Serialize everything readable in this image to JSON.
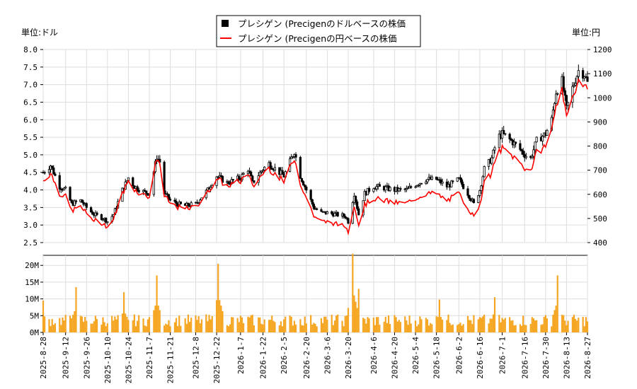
{
  "chart_data": [
    {
      "type": "candlestick",
      "left_unit_label": "単位:ドル",
      "right_unit_label": "単位:円",
      "legend": [
        {
          "name": "プレシゲン (Precigenのドルベースの株価",
          "style": "black-square",
          "color": "#000000"
        },
        {
          "name": "プレシゲン (Precigenの円ベースの株価",
          "style": "red-line",
          "color": "#ff0000"
        }
      ],
      "ylim_left": [
        2.5,
        8.0
      ],
      "ylim_right": [
        400,
        1200
      ],
      "y_ticks_left": [
        "2.5",
        "3.0",
        "3.5",
        "4.0",
        "4.5",
        "5.0",
        "5.5",
        "6.0",
        "6.5",
        "7.0",
        "7.5",
        "8.0"
      ],
      "y_ticks_right": [
        "400",
        "500",
        "600",
        "700",
        "800",
        "900",
        "1000",
        "1100",
        "1200"
      ],
      "x_dates": [
        "2025-8-28",
        "2025-9-12",
        "2025-9-26",
        "2025-10-10",
        "2025-10-24",
        "2025-11-7",
        "2025-11-21",
        "2025-12-8",
        "2025-12-22",
        "2026-1-7",
        "2026-1-22",
        "2026-2-5",
        "2026-2-20",
        "2026-3-6",
        "2026-3-20",
        "2026-4-6",
        "2026-4-20",
        "2026-5-4",
        "2026-5-18",
        "2026-6-2",
        "2026-6-16",
        "2026-7-1",
        "2026-7-16",
        "2026-7-30",
        "2026-8-13",
        "2026-8-27"
      ],
      "price_keypoints_usd": [
        [
          "2025-8-28",
          4.5
        ],
        [
          "2025-9-2",
          4.7
        ],
        [
          "2025-9-8",
          4.1
        ],
        [
          "2025-9-12",
          4.0
        ],
        [
          "2025-9-16",
          3.6
        ],
        [
          "2025-9-22",
          3.7
        ],
        [
          "2025-9-26",
          3.5
        ],
        [
          "2025-10-1",
          3.3
        ],
        [
          "2025-10-7",
          3.2
        ],
        [
          "2025-10-10",
          3.1
        ],
        [
          "2025-10-14",
          3.3
        ],
        [
          "2025-10-20",
          4.0
        ],
        [
          "2025-10-24",
          4.35
        ],
        [
          "2025-10-28",
          4.1
        ],
        [
          "2025-11-3",
          3.95
        ],
        [
          "2025-11-7",
          3.9
        ],
        [
          "2025-11-12",
          4.95
        ],
        [
          "2025-11-14",
          4.8
        ],
        [
          "2025-11-17",
          3.9
        ],
        [
          "2025-11-21",
          3.7
        ],
        [
          "2025-11-26",
          3.6
        ],
        [
          "2025-12-1",
          3.55
        ],
        [
          "2025-12-8",
          3.6
        ],
        [
          "2025-12-16",
          4.0
        ],
        [
          "2025-12-22",
          4.4
        ],
        [
          "2025-12-29",
          4.2
        ],
        [
          "2026-1-7",
          4.35
        ],
        [
          "2026-1-12",
          4.6
        ],
        [
          "2026-1-15",
          4.2
        ],
        [
          "2026-1-22",
          4.6
        ],
        [
          "2026-1-26",
          4.75
        ],
        [
          "2026-2-2",
          4.5
        ],
        [
          "2026-2-5",
          4.4
        ],
        [
          "2026-2-10",
          4.9
        ],
        [
          "2026-2-12",
          5.1
        ],
        [
          "2026-2-16",
          4.4
        ],
        [
          "2026-2-20",
          4.0
        ],
        [
          "2026-2-25",
          3.5
        ],
        [
          "2026-3-2",
          3.35
        ],
        [
          "2026-3-6",
          3.35
        ],
        [
          "2026-3-12",
          3.3
        ],
        [
          "2026-3-18",
          3.25
        ],
        [
          "2026-3-20",
          3.1
        ],
        [
          "2026-3-24",
          3.9
        ],
        [
          "2026-3-27",
          3.3
        ],
        [
          "2026-3-31",
          3.9
        ],
        [
          "2026-4-6",
          4.1
        ],
        [
          "2026-4-14",
          4.05
        ],
        [
          "2026-4-20",
          4.0
        ],
        [
          "2026-4-28",
          4.0
        ],
        [
          "2026-5-4",
          4.15
        ],
        [
          "2026-5-11",
          4.3
        ],
        [
          "2026-5-18",
          4.3
        ],
        [
          "2026-5-25",
          4.1
        ],
        [
          "2026-6-2",
          4.3
        ],
        [
          "2026-6-8",
          3.9
        ],
        [
          "2026-6-12",
          3.6
        ],
        [
          "2026-6-16",
          4.0
        ],
        [
          "2026-6-19",
          4.6
        ],
        [
          "2026-6-24",
          4.9
        ],
        [
          "2026-6-28",
          5.5
        ],
        [
          "2026-7-1",
          5.6
        ],
        [
          "2026-7-7",
          5.4
        ],
        [
          "2026-7-12",
          5.2
        ],
        [
          "2026-7-16",
          5.0
        ],
        [
          "2026-7-20",
          4.9
        ],
        [
          "2026-7-24",
          5.4
        ],
        [
          "2026-7-30",
          5.6
        ],
        [
          "2026-8-3",
          6.0
        ],
        [
          "2026-8-6",
          6.8
        ],
        [
          "2026-8-10",
          7.1
        ],
        [
          "2026-8-13",
          6.3
        ],
        [
          "2026-8-17",
          6.9
        ],
        [
          "2026-8-21",
          7.4
        ],
        [
          "2026-8-25",
          7.3
        ],
        [
          "2026-8-27",
          7.05
        ]
      ],
      "volume_panel": {
        "ylim": [
          0,
          23000000
        ],
        "y_ticks": [
          "0M",
          "5M",
          "10M",
          "15M",
          "20M"
        ],
        "typical_volume": 4000000,
        "spikes": [
          [
            "2025-8-28",
            9500000
          ],
          [
            "2025-9-19",
            13500000
          ],
          [
            "2025-10-21",
            12000000
          ],
          [
            "2025-11-12",
            17000000
          ],
          [
            "2025-12-23",
            20500000
          ],
          [
            "2026-3-23",
            23500000
          ],
          [
            "2026-3-27",
            13000000
          ],
          [
            "2026-5-20",
            9800000
          ],
          [
            "2026-6-26",
            10500000
          ],
          [
            "2026-8-7",
            17000000
          ]
        ]
      }
    }
  ]
}
